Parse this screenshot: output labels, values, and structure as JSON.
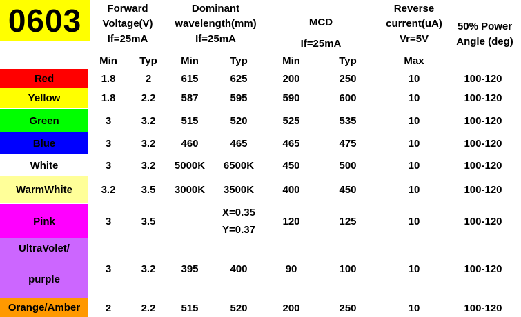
{
  "logo": "0603",
  "headers": {
    "forward": [
      "Forward",
      "Voltage(V)",
      "If=25mA"
    ],
    "dominant": [
      "Dominant",
      "wavelength(mm)",
      "If=25mA"
    ],
    "mcd": [
      "MCD",
      "If=25mA"
    ],
    "reverse": [
      "Reverse",
      "current(uA)",
      "Vr=5V"
    ],
    "angle": [
      "50% Power",
      "Angle (deg)"
    ]
  },
  "subheaders": [
    "Min",
    "Typ",
    "Min",
    "Typ",
    "Min",
    "Typ",
    "Max"
  ],
  "rows": [
    {
      "name": "Red",
      "color": "#ff0000",
      "v_min": "1.8",
      "v_typ": "2",
      "w_min": "615",
      "w_typ": "625",
      "m_min": "200",
      "m_typ": "250",
      "rev": "10",
      "angle": "100-120"
    },
    {
      "name": "Yellow",
      "color": "#ffff00",
      "v_min": "1.8",
      "v_typ": "2.2",
      "w_min": "587",
      "w_typ": "595",
      "m_min": "590",
      "m_typ": "600",
      "rev": "10",
      "angle": "100-120"
    },
    {
      "name": "Green",
      "color": "#00ff00",
      "v_min": "3",
      "v_typ": "3.2",
      "w_min": "515",
      "w_typ": "520",
      "m_min": "525",
      "m_typ": "535",
      "rev": "10",
      "angle": "100-120"
    },
    {
      "name": "Blue",
      "color": "#0000ff",
      "v_min": "3",
      "v_typ": "3.2",
      "w_min": "460",
      "w_typ": "465",
      "m_min": "465",
      "m_typ": "475",
      "rev": "10",
      "angle": "100-120"
    },
    {
      "name": "White",
      "color": "#ffffff",
      "v_min": "3",
      "v_typ": "3.2",
      "w_min": "5000K",
      "w_typ": "6500K",
      "m_min": "450",
      "m_typ": "500",
      "rev": "10",
      "angle": "100-120"
    },
    {
      "name": "WarmWhite",
      "color": "#ffff99",
      "v_min": "3.2",
      "v_typ": "3.5",
      "w_min": "3000K",
      "w_typ": "3500K",
      "m_min": "400",
      "m_typ": "450",
      "rev": "10",
      "angle": "100-120"
    },
    {
      "name": "Pink",
      "color": "#ff00ff",
      "v_min": "3",
      "v_typ": "3.5",
      "w_min": "",
      "w_typ_1": "X=0.35",
      "w_typ_2": "Y=0.37",
      "m_min": "120",
      "m_typ": "125",
      "rev": "10",
      "angle": "100-120"
    },
    {
      "name_1": "UltraVolet/",
      "name_2": "purple",
      "color": "#cc66ff",
      "v_min": "3",
      "v_typ": "3.2",
      "w_min": "395",
      "w_typ": "400",
      "m_min": "90",
      "m_typ": "100",
      "rev": "10",
      "angle": "100-120"
    },
    {
      "name": "Orange/Amber",
      "color": "#ff9900",
      "v_min": "2",
      "v_typ": "2.2",
      "w_min": "515",
      "w_typ": "520",
      "m_min": "200",
      "m_typ": "250",
      "rev": "10",
      "angle": "100-120"
    }
  ]
}
